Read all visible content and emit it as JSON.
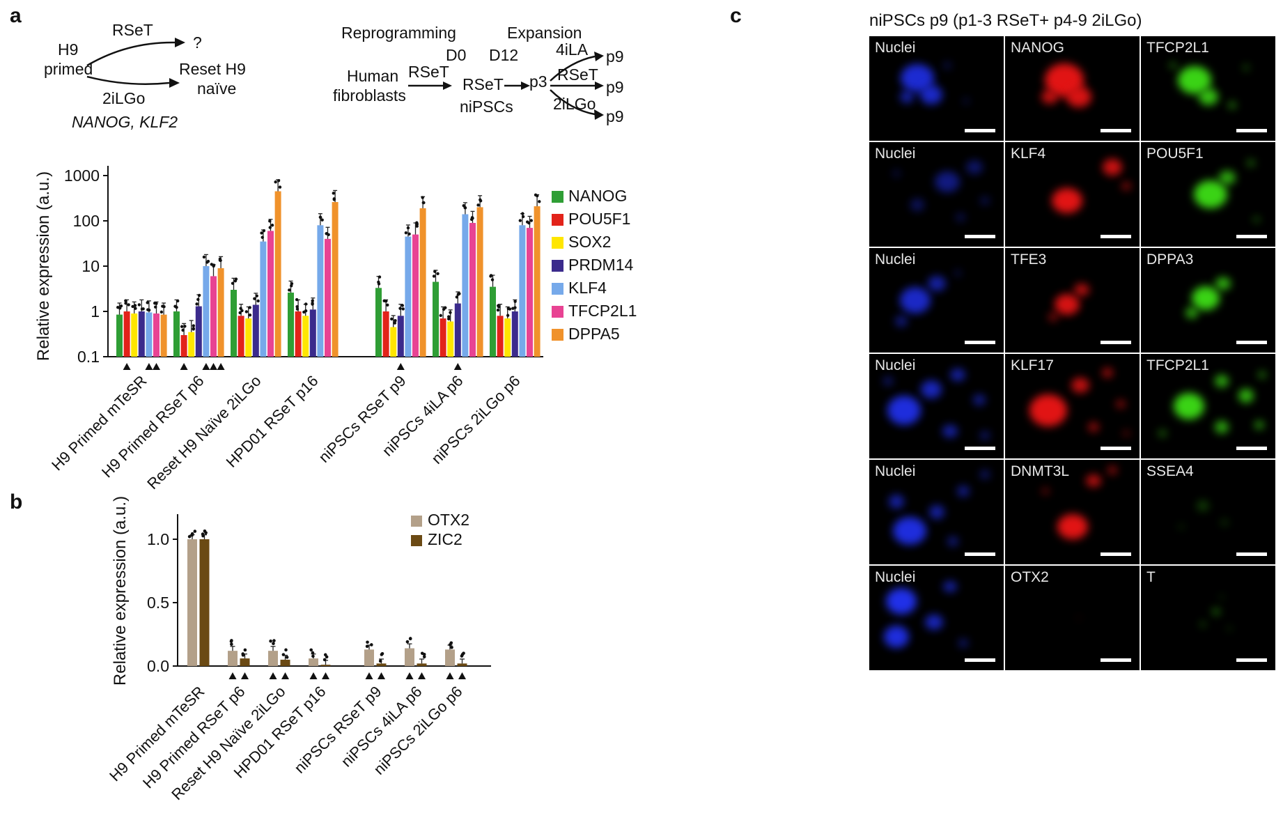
{
  "panels": {
    "a": "a",
    "b": "b",
    "c": "c"
  },
  "schematic_left": {
    "cell_line": "H9",
    "cell_state": "primed",
    "top_route": "RSeT",
    "top_result": "?",
    "bottom_route": "2iLGo",
    "bottom_result_line1": "Reset H9",
    "bottom_result_line2": "naïve",
    "genes": "NANOG, KLF2"
  },
  "schematic_right": {
    "phase_reprogramming": "Reprogramming",
    "phase_expansion": "Expansion",
    "day0": "D0",
    "day12": "D12",
    "source_line1": "Human",
    "source_line2": "fibroblasts",
    "step1": "RSeT",
    "step2": "RSeT",
    "passage3": "p3",
    "intermediate": "niPSCs",
    "branch_top": "4iLA",
    "branch_mid": "RSeT",
    "branch_bottom": "2iLGo",
    "branch_top_end": "p9",
    "branch_mid_end": "p9",
    "branch_bottom_end": "p9"
  },
  "chart_data": [
    {
      "type": "bar",
      "scale": "log",
      "ylabel": "Relative expression (a.u.)",
      "yticks": [
        0.1,
        1,
        10,
        100,
        1000
      ],
      "ylim": [
        0.1,
        1000
      ],
      "grid": false,
      "legend_position": "right",
      "categories": [
        "H9 Primed mTeSR",
        "H9 Primed RSeT p6",
        "Reset H9 Naïve 2iLGo",
        "HPD01 RSeT p16",
        "niPSCs RSeT p9",
        "niPSCs 4iLA p6",
        "niPSCs 2iLGo p6"
      ],
      "gap_after_index": 3,
      "series": [
        {
          "name": "NANOG",
          "color": "#2f9e35",
          "values": [
            0.85,
            1.0,
            3.0,
            2.6,
            3.3,
            4.5,
            3.5
          ]
        },
        {
          "name": "POU5F1",
          "color": "#e2231a",
          "values": [
            1.0,
            0.3,
            0.8,
            1.0,
            1.0,
            0.7,
            0.8
          ]
        },
        {
          "name": "SOX2",
          "color": "#ffe600",
          "values": [
            0.9,
            0.35,
            0.7,
            0.8,
            0.45,
            0.6,
            0.7
          ]
        },
        {
          "name": "PRDM14",
          "color": "#3b2b8c",
          "values": [
            1.0,
            1.3,
            1.4,
            1.1,
            0.8,
            1.5,
            1.0
          ]
        },
        {
          "name": "KLF4",
          "color": "#76a9ea",
          "values": [
            0.95,
            10,
            35,
            80,
            45,
            140,
            80
          ]
        },
        {
          "name": "TFCP2L1",
          "color": "#e84393",
          "values": [
            0.9,
            6,
            60,
            40,
            50,
            90,
            70
          ]
        },
        {
          "name": "DPPA5",
          "color": "#f0922b",
          "values": [
            0.85,
            9,
            450,
            260,
            190,
            200,
            210
          ]
        }
      ],
      "significance_markers": [
        [
          1,
          4,
          5
        ],
        [
          1,
          4,
          5,
          6
        ],
        [],
        [],
        [
          3
        ],
        [
          3
        ],
        []
      ]
    },
    {
      "type": "bar",
      "scale": "linear",
      "ylabel": "Relative expression (a.u.)",
      "yticks": [
        0.0,
        0.5,
        1.0
      ],
      "ylim": [
        0,
        1.13
      ],
      "grid": false,
      "legend_position": "top-right",
      "categories": [
        "H9 Primed mTeSR",
        "H9 Primed RSeT p6",
        "Reset H9 Naïve 2iLGo",
        "HPD01 RSeT p16",
        "niPSCs RSeT p9",
        "niPSCs 4iLA p6",
        "niPSCs 2iLGo p6"
      ],
      "gap_after_index": 3,
      "series": [
        {
          "name": "OTX2",
          "color": "#b3a089",
          "values": [
            1.0,
            0.12,
            0.12,
            0.06,
            0.13,
            0.14,
            0.13
          ]
        },
        {
          "name": "ZIC2",
          "color": "#6b4a14",
          "values": [
            1.0,
            0.06,
            0.05,
            0.01,
            0.02,
            0.02,
            0.02
          ]
        }
      ],
      "significance_markers": [
        [],
        [
          0,
          1
        ],
        [
          0,
          1
        ],
        [
          0,
          1
        ],
        [
          0,
          1
        ],
        [
          0,
          1
        ],
        [
          0,
          1
        ]
      ]
    }
  ],
  "panel_c": {
    "title": "niPSCs p9 (p1-3 RSeT+ p4-9 2iLGo)",
    "channel_colors": {
      "nuclei": "#2030e8",
      "red": "#e11414",
      "green": "#3ad315"
    },
    "rows": [
      {
        "cells": [
          {
            "label": "Nuclei",
            "channel": "nuclei",
            "blobs": [
              [
                36,
                40,
                24,
                20,
                0.9
              ],
              [
                46,
                56,
                16,
                14,
                0.85
              ],
              [
                28,
                58,
                10,
                9,
                0.7
              ],
              [
                58,
                28,
                5,
                4,
                0.5
              ],
              [
                72,
                62,
                4,
                4,
                0.4
              ]
            ]
          },
          {
            "label": "NANOG",
            "channel": "red",
            "blobs": [
              [
                44,
                42,
                28,
                24,
                1
              ],
              [
                55,
                58,
                18,
                15,
                0.95
              ],
              [
                33,
                58,
                12,
                10,
                0.85
              ]
            ]
          },
          {
            "label": "TFCP2L1",
            "channel": "green",
            "blobs": [
              [
                40,
                42,
                24,
                20,
                1
              ],
              [
                50,
                58,
                14,
                12,
                0.9
              ],
              [
                24,
                28,
                5,
                4,
                0.6
              ],
              [
                68,
                66,
                6,
                5,
                0.6
              ],
              [
                78,
                30,
                4,
                4,
                0.5
              ]
            ]
          }
        ]
      },
      {
        "cells": [
          {
            "label": "Nuclei",
            "channel": "nuclei",
            "blobs": [
              [
                58,
                38,
                18,
                15,
                0.55
              ],
              [
                78,
                24,
                12,
                10,
                0.45
              ],
              [
                36,
                60,
                10,
                9,
                0.4
              ],
              [
                86,
                56,
                7,
                6,
                0.35
              ],
              [
                20,
                30,
                6,
                5,
                0.3
              ],
              [
                68,
                72,
                7,
                6,
                0.35
              ]
            ]
          },
          {
            "label": "KLF4",
            "channel": "red",
            "blobs": [
              [
                46,
                56,
                22,
                18,
                1
              ],
              [
                80,
                24,
                14,
                12,
                0.9
              ],
              [
                90,
                42,
                7,
                6,
                0.6
              ]
            ]
          },
          {
            "label": "POU5F1",
            "channel": "green",
            "blobs": [
              [
                52,
                50,
                24,
                20,
                1
              ],
              [
                64,
                34,
                12,
                10,
                0.8
              ],
              [
                82,
                20,
                6,
                5,
                0.5
              ],
              [
                86,
                74,
                5,
                4,
                0.45
              ]
            ]
          }
        ]
      },
      {
        "cells": [
          {
            "label": "Nuclei",
            "channel": "nuclei",
            "blobs": [
              [
                34,
                50,
                22,
                19,
                0.85
              ],
              [
                50,
                34,
                13,
                11,
                0.7
              ],
              [
                24,
                70,
                9,
                8,
                0.55
              ],
              [
                66,
                24,
                5,
                4,
                0.4
              ]
            ]
          },
          {
            "label": "TFE3",
            "channel": "red",
            "blobs": [
              [
                46,
                54,
                18,
                15,
                0.95
              ],
              [
                57,
                40,
                11,
                9,
                0.8
              ],
              [
                36,
                66,
                7,
                6,
                0.6
              ]
            ]
          },
          {
            "label": "DPPA3",
            "channel": "green",
            "blobs": [
              [
                48,
                48,
                20,
                17,
                1
              ],
              [
                61,
                34,
                11,
                9,
                0.85
              ],
              [
                38,
                62,
                9,
                8,
                0.8
              ]
            ]
          }
        ]
      },
      {
        "cells": [
          {
            "label": "Nuclei",
            "channel": "nuclei",
            "blobs": [
              [
                26,
                54,
                24,
                21,
                0.95
              ],
              [
                46,
                34,
                15,
                13,
                0.8
              ],
              [
                66,
                20,
                11,
                9,
                0.7
              ],
              [
                82,
                44,
                9,
                8,
                0.6
              ],
              [
                60,
                74,
                11,
                9,
                0.7
              ],
              [
                86,
                78,
                7,
                6,
                0.5
              ],
              [
                14,
                26,
                7,
                6,
                0.5
              ]
            ]
          },
          {
            "label": "KLF17",
            "channel": "red",
            "blobs": [
              [
                32,
                54,
                27,
                23,
                1
              ],
              [
                56,
                30,
                13,
                11,
                0.85
              ],
              [
                76,
                18,
                8,
                7,
                0.7
              ],
              [
                86,
                48,
                7,
                6,
                0.6
              ],
              [
                66,
                70,
                8,
                7,
                0.65
              ],
              [
                90,
                76,
                5,
                4,
                0.5
              ]
            ]
          },
          {
            "label": "TFCP2L1",
            "channel": "green",
            "blobs": [
              [
                36,
                50,
                22,
                19,
                1
              ],
              [
                60,
                26,
                10,
                9,
                0.8
              ],
              [
                78,
                40,
                11,
                10,
                0.85
              ],
              [
                60,
                70,
                10,
                9,
                0.8
              ],
              [
                88,
                68,
                7,
                6,
                0.7
              ],
              [
                90,
                20,
                6,
                5,
                0.6
              ],
              [
                16,
                76,
                6,
                5,
                0.5
              ]
            ]
          }
        ]
      },
      {
        "cells": [
          {
            "label": "Nuclei",
            "channel": "nuclei",
            "blobs": [
              [
                30,
                68,
                24,
                20,
                0.95
              ],
              [
                20,
                40,
                11,
                10,
                0.7
              ],
              [
                50,
                50,
                11,
                10,
                0.7
              ],
              [
                70,
                30,
                9,
                8,
                0.6
              ],
              [
                86,
                14,
                7,
                6,
                0.5
              ],
              [
                62,
                78,
                8,
                7,
                0.55
              ]
            ]
          },
          {
            "label": "DNMT3L",
            "channel": "red",
            "blobs": [
              [
                50,
                64,
                22,
                18,
                1
              ],
              [
                66,
                20,
                11,
                9,
                0.8
              ],
              [
                80,
                10,
                7,
                6,
                0.65
              ],
              [
                30,
                30,
                6,
                5,
                0.45
              ]
            ]
          },
          {
            "label": "SSEA4",
            "channel": "green",
            "blobs": [
              [
                46,
                44,
                9,
                8,
                0.28
              ],
              [
                62,
                60,
                6,
                5,
                0.22
              ],
              [
                30,
                64,
                5,
                4,
                0.18
              ]
            ]
          }
        ]
      },
      {
        "cells": [
          {
            "label": "Nuclei",
            "channel": "nuclei",
            "blobs": [
              [
                24,
                34,
                22,
                19,
                1
              ],
              [
                20,
                68,
                18,
                16,
                0.95
              ],
              [
                48,
                54,
                13,
                11,
                0.8
              ],
              [
                60,
                20,
                10,
                8,
                0.7
              ],
              [
                70,
                74,
                7,
                6,
                0.5
              ]
            ]
          },
          {
            "label": "OTX2",
            "channel": "red",
            "blobs": [
              [
                55,
                50,
                5,
                4,
                0.07
              ]
            ]
          },
          {
            "label": "T",
            "channel": "green",
            "blobs": [
              [
                56,
                44,
                6,
                5,
                0.5
              ],
              [
                46,
                56,
                4,
                4,
                0.4
              ],
              [
                66,
                60,
                3,
                3,
                0.35
              ],
              [
                60,
                30,
                3,
                3,
                0.3
              ]
            ]
          }
        ]
      }
    ]
  }
}
